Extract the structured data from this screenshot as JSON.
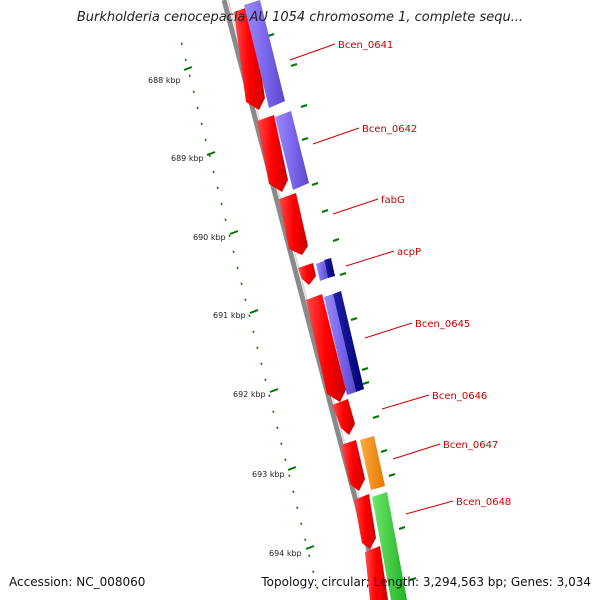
{
  "title": "Burkholderia cenocepacia AU 1054 chromosome 1, complete sequ...",
  "footer": {
    "accession": "Accession: NC_008060",
    "summary": "Topology: circular; Length: 3,294,563 bp; Genes: 3,034"
  },
  "colors": {
    "backbone": "#8a8a8a",
    "strand_forward": "#ff0000",
    "strand_reverse": "#7b68ee",
    "navy": "#000080",
    "orange": "#ff8c00",
    "green": "#32cd32",
    "ticks": "#007700",
    "gene_label": "#cc0000"
  },
  "ticks": [
    {
      "label": "688 kbp"
    },
    {
      "label": "689 kbp"
    },
    {
      "label": "690 kbp"
    },
    {
      "label": "691 kbp"
    },
    {
      "label": "692 kbp"
    },
    {
      "label": "693 kbp"
    },
    {
      "label": "694 kbp"
    }
  ],
  "genes": [
    {
      "label": "Bcen_0641"
    },
    {
      "label": "Bcen_0642"
    },
    {
      "label": "fabG"
    },
    {
      "label": "acpP"
    },
    {
      "label": "Bcen_0645"
    },
    {
      "label": "Bcen_0646"
    },
    {
      "label": "Bcen_0647"
    },
    {
      "label": "Bcen_0648"
    }
  ]
}
